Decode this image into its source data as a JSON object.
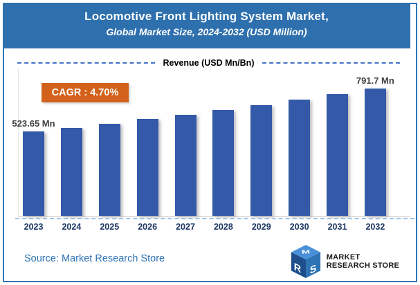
{
  "banner": {
    "title": "Locomotive Front Lighting System Market,",
    "subtitle": "Global Market Size, 2024-2032 (USD Million)"
  },
  "revenue_header": {
    "label": "Revenue (USD Mn/Bn)"
  },
  "cagr_badge": {
    "label": "CAGR : 4.70%"
  },
  "chart_data": {
    "type": "bar",
    "title": "Locomotive Front Lighting System Market",
    "subtitle": "Global Market Size, 2024-2032 (USD Million)",
    "ylabel": "Revenue (USD Mn/Bn)",
    "unit": "USD Mn",
    "cagr": "4.70%",
    "categories": [
      "2023",
      "2024",
      "2025",
      "2026",
      "2027",
      "2028",
      "2029",
      "2030",
      "2031",
      "2032"
    ],
    "values": [
      523.65,
      548.26,
      574.03,
      601.01,
      629.26,
      658.83,
      689.8,
      722.22,
      756.16,
      791.7
    ],
    "point_labels": {
      "0": "523.65 Mn",
      "9": "791.7 Mn"
    },
    "ylim": [
      0,
      830
    ],
    "grid": false,
    "legend": "none"
  },
  "footer": {
    "source": "Source: Market Research Store",
    "logo": {
      "line1": "MARKET",
      "line2": "RESEARCH STORE",
      "cube_letters": "MRS"
    }
  },
  "colors": {
    "frame": "#2e74b5",
    "banner": "#2e70ad",
    "bar": "#3359a8",
    "cagr": "#d2611b",
    "dash": "#4472c4",
    "dash_light": "#9dc3e6",
    "year": "#1f3864",
    "value_label": "#404040",
    "source": "#2e74b5",
    "logo_top": "#4a90d9",
    "logo_left": "#1e4e8c",
    "logo_right": "#2e74b5"
  }
}
